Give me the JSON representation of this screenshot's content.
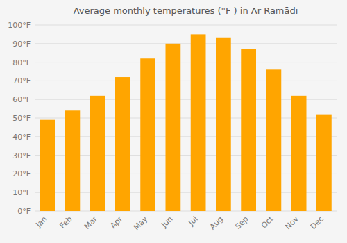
{
  "chart_data": {
    "type": "bar",
    "title": "Average monthly temperatures (°F ) in Ar Ramādī",
    "categories": [
      "Jan",
      "Feb",
      "Mar",
      "Apr",
      "May",
      "Jun",
      "Jul",
      "Aug",
      "Sep",
      "Oct",
      "Nov",
      "Dec"
    ],
    "values": [
      49,
      54,
      62,
      72,
      82,
      90,
      95,
      93,
      87,
      76,
      62,
      52
    ],
    "color": "#FFA500",
    "ylim": [
      0,
      100
    ],
    "yticks": [
      {
        "value": 0,
        "label": "0°F"
      },
      {
        "value": 10,
        "label": "10°F"
      },
      {
        "value": 20,
        "label": "20°F"
      },
      {
        "value": 30,
        "label": "30°F"
      },
      {
        "value": 40,
        "label": "40°F"
      },
      {
        "value": 50,
        "label": "50°F"
      },
      {
        "value": 60,
        "label": "60°F"
      },
      {
        "value": 70,
        "label": "70°F"
      },
      {
        "value": 80,
        "label": "80°F"
      },
      {
        "value": 90,
        "label": "90°F"
      },
      {
        "value": 100,
        "label": "100°F"
      }
    ],
    "grid": true
  }
}
